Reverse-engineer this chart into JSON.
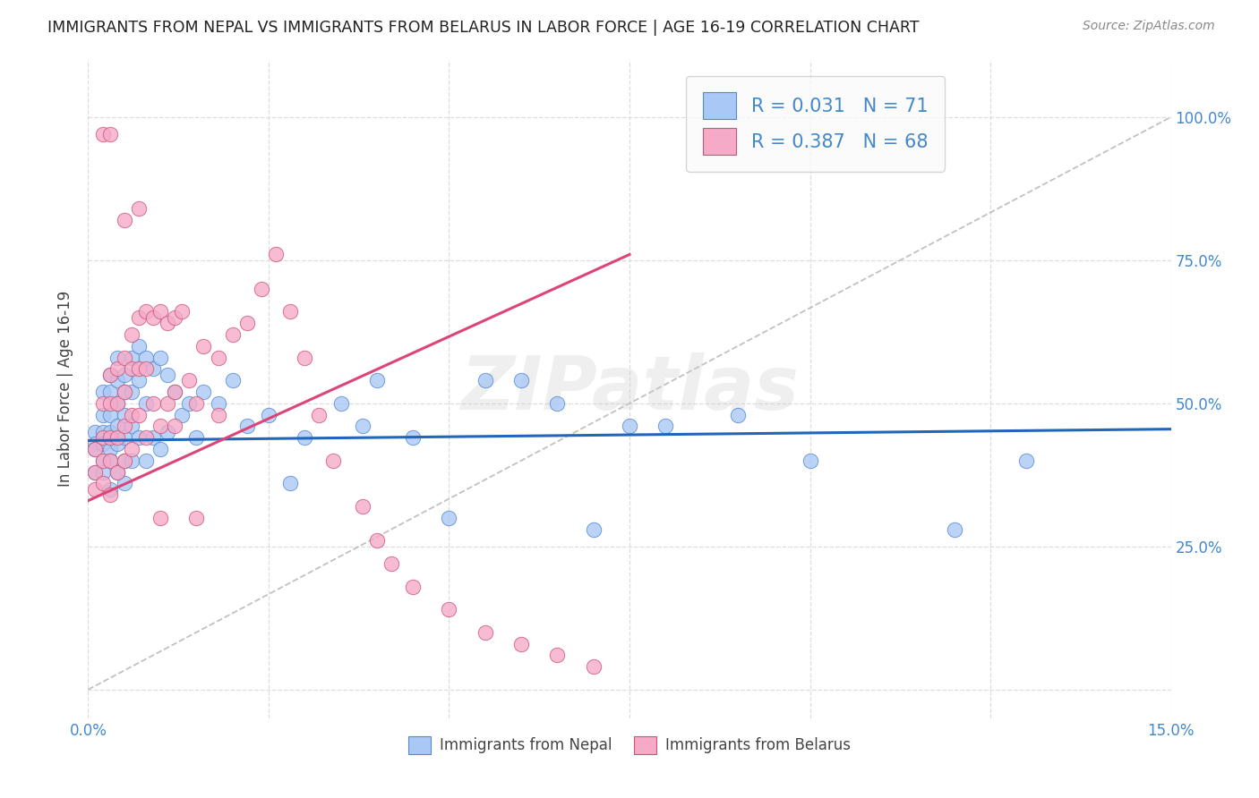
{
  "title": "IMMIGRANTS FROM NEPAL VS IMMIGRANTS FROM BELARUS IN LABOR FORCE | AGE 16-19 CORRELATION CHART",
  "source": "Source: ZipAtlas.com",
  "ylabel_label": "In Labor Force | Age 16-19",
  "xlim": [
    0.0,
    0.15
  ],
  "ylim": [
    -0.05,
    1.1
  ],
  "xticks": [
    0.0,
    0.025,
    0.05,
    0.075,
    0.1,
    0.125,
    0.15
  ],
  "xticklabels": [
    "0.0%",
    "",
    "",
    "",
    "",
    "",
    "15.0%"
  ],
  "yticks_right": [
    0.0,
    0.25,
    0.5,
    0.75,
    1.0
  ],
  "yticklabels_right": [
    "",
    "25.0%",
    "50.0%",
    "75.0%",
    "100.0%"
  ],
  "nepal_R": 0.031,
  "nepal_N": 71,
  "belarus_R": 0.387,
  "belarus_N": 68,
  "nepal_color": "#aac8f5",
  "belarus_color": "#f5aac8",
  "nepal_edge_color": "#5588cc",
  "belarus_edge_color": "#cc5577",
  "nepal_line_color": "#2266bb",
  "belarus_line_color": "#dd4477",
  "diagonal_color": "#bbbbbb",
  "watermark": "ZIPatlas",
  "nepal_line_x0": 0.0,
  "nepal_line_x1": 0.15,
  "nepal_line_y0": 0.435,
  "nepal_line_y1": 0.455,
  "belarus_line_x0": 0.0,
  "belarus_line_x1": 0.075,
  "belarus_line_y0": 0.33,
  "belarus_line_y1": 0.76,
  "nepal_scatter_x": [
    0.001,
    0.001,
    0.001,
    0.001,
    0.002,
    0.002,
    0.002,
    0.002,
    0.002,
    0.002,
    0.003,
    0.003,
    0.003,
    0.003,
    0.003,
    0.003,
    0.003,
    0.004,
    0.004,
    0.004,
    0.004,
    0.004,
    0.004,
    0.005,
    0.005,
    0.005,
    0.005,
    0.005,
    0.005,
    0.006,
    0.006,
    0.006,
    0.006,
    0.007,
    0.007,
    0.007,
    0.008,
    0.008,
    0.008,
    0.009,
    0.009,
    0.01,
    0.01,
    0.011,
    0.011,
    0.012,
    0.013,
    0.014,
    0.015,
    0.016,
    0.018,
    0.02,
    0.022,
    0.025,
    0.028,
    0.03,
    0.035,
    0.038,
    0.04,
    0.045,
    0.05,
    0.055,
    0.06,
    0.065,
    0.07,
    0.075,
    0.08,
    0.09,
    0.1,
    0.12,
    0.13
  ],
  "nepal_scatter_y": [
    0.45,
    0.43,
    0.42,
    0.38,
    0.52,
    0.48,
    0.45,
    0.43,
    0.4,
    0.38,
    0.55,
    0.52,
    0.48,
    0.45,
    0.42,
    0.4,
    0.35,
    0.58,
    0.54,
    0.5,
    0.46,
    0.43,
    0.38,
    0.55,
    0.52,
    0.48,
    0.44,
    0.4,
    0.36,
    0.58,
    0.52,
    0.46,
    0.4,
    0.6,
    0.54,
    0.44,
    0.58,
    0.5,
    0.4,
    0.56,
    0.44,
    0.58,
    0.42,
    0.55,
    0.45,
    0.52,
    0.48,
    0.5,
    0.44,
    0.52,
    0.5,
    0.54,
    0.46,
    0.48,
    0.36,
    0.44,
    0.5,
    0.46,
    0.54,
    0.44,
    0.3,
    0.54,
    0.54,
    0.5,
    0.28,
    0.46,
    0.46,
    0.48,
    0.4,
    0.28,
    0.4
  ],
  "belarus_scatter_x": [
    0.001,
    0.001,
    0.001,
    0.002,
    0.002,
    0.002,
    0.002,
    0.003,
    0.003,
    0.003,
    0.003,
    0.003,
    0.004,
    0.004,
    0.004,
    0.004,
    0.005,
    0.005,
    0.005,
    0.005,
    0.006,
    0.006,
    0.006,
    0.006,
    0.007,
    0.007,
    0.007,
    0.008,
    0.008,
    0.008,
    0.009,
    0.009,
    0.01,
    0.01,
    0.011,
    0.011,
    0.012,
    0.012,
    0.013,
    0.014,
    0.015,
    0.016,
    0.018,
    0.02,
    0.022,
    0.024,
    0.026,
    0.028,
    0.03,
    0.032,
    0.034,
    0.038,
    0.04,
    0.042,
    0.045,
    0.05,
    0.055,
    0.06,
    0.065,
    0.07,
    0.002,
    0.003,
    0.005,
    0.007,
    0.01,
    0.012,
    0.015,
    0.018
  ],
  "belarus_scatter_y": [
    0.42,
    0.38,
    0.35,
    0.5,
    0.44,
    0.4,
    0.36,
    0.55,
    0.5,
    0.44,
    0.4,
    0.34,
    0.56,
    0.5,
    0.44,
    0.38,
    0.58,
    0.52,
    0.46,
    0.4,
    0.62,
    0.56,
    0.48,
    0.42,
    0.65,
    0.56,
    0.48,
    0.66,
    0.56,
    0.44,
    0.65,
    0.5,
    0.66,
    0.46,
    0.64,
    0.5,
    0.65,
    0.46,
    0.66,
    0.54,
    0.5,
    0.6,
    0.58,
    0.62,
    0.64,
    0.7,
    0.76,
    0.66,
    0.58,
    0.48,
    0.4,
    0.32,
    0.26,
    0.22,
    0.18,
    0.14,
    0.1,
    0.08,
    0.06,
    0.04,
    0.97,
    0.97,
    0.82,
    0.84,
    0.3,
    0.52,
    0.3,
    0.48
  ],
  "background_color": "#ffffff",
  "grid_color": "#dddddd",
  "title_color": "#222222",
  "axis_label_color": "#444444",
  "tick_color": "#4488cc",
  "legend_facecolor": "#fafafa",
  "legend_edgecolor": "#cccccc"
}
